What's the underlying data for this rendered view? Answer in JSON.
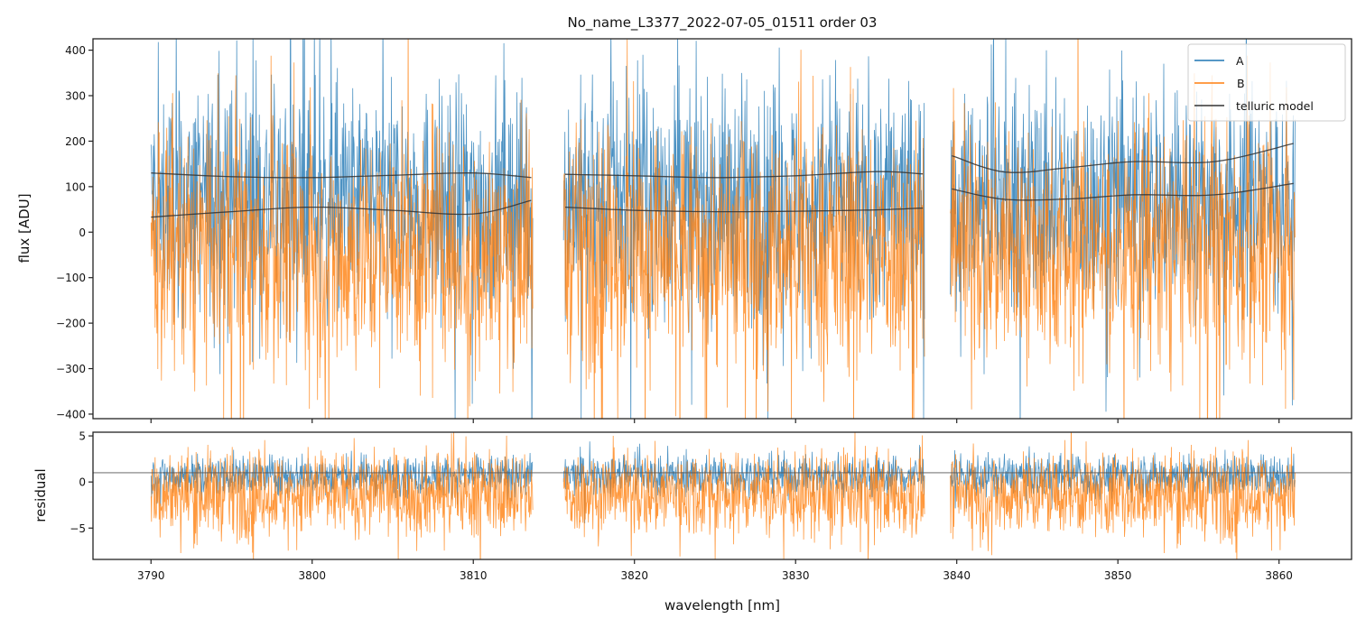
{
  "chart_data": [
    {
      "type": "line",
      "title": "No_name_L3377_2022-07-05_01511  order 03",
      "xlabel": "",
      "ylabel": "flux [ADU]",
      "xlim": [
        3786.4,
        3864.5
      ],
      "ylim": [
        -410,
        425
      ],
      "yticks": [
        400,
        300,
        200,
        100,
        0,
        -100,
        -200,
        -300,
        -400
      ],
      "ytick_labels": [
        "400",
        "300",
        "200",
        "100",
        "0",
        "−100",
        "−200",
        "−300",
        "−400"
      ],
      "xticks": [
        3790,
        3800,
        3810,
        3820,
        3830,
        3840,
        3850,
        3860
      ],
      "segments": [
        [
          3790.0,
          3813.7
        ],
        [
          3815.6,
          3838.0
        ],
        [
          3839.6,
          3861.0
        ]
      ],
      "legend": {
        "placement": "top-right",
        "entries": [
          "A",
          "B",
          "telluric model"
        ]
      },
      "series": [
        {
          "name": "A",
          "color": "#1f77b4",
          "description_values": {
            "mean": 60,
            "spread_low": -330,
            "spread_high": 430
          }
        },
        {
          "name": "B",
          "color": "#ff7f0e",
          "description_values": {
            "mean": -20,
            "spread_low": -420,
            "spread_high": 260
          }
        },
        {
          "name": "telluric model",
          "color": "#333333",
          "curves": [
            {
              "x": [
                3790,
                3795,
                3800,
                3805,
                3810,
                3813.6
              ],
              "y": [
                130,
                122,
                120,
                125,
                130,
                120
              ]
            },
            {
              "x": [
                3790,
                3795,
                3800,
                3805,
                3810,
                3813.6
              ],
              "y": [
                33,
                45,
                55,
                48,
                40,
                70
              ]
            },
            {
              "x": [
                3815.7,
                3820,
                3825,
                3830,
                3835,
                3837.9
              ],
              "y": [
                127,
                124,
                120,
                124,
                133,
                128
              ]
            },
            {
              "x": [
                3815.7,
                3820,
                3825,
                3830,
                3835,
                3837.9
              ],
              "y": [
                55,
                48,
                45,
                46,
                49,
                53
              ]
            },
            {
              "x": [
                3839.7,
                3843,
                3847,
                3851,
                3856,
                3860.9
              ],
              "y": [
                168,
                132,
                142,
                155,
                155,
                195
              ]
            },
            {
              "x": [
                3839.7,
                3843,
                3847,
                3851,
                3856,
                3860.9
              ],
              "y": [
                95,
                72,
                73,
                82,
                82,
                107
              ]
            }
          ]
        }
      ]
    },
    {
      "type": "line",
      "title": "",
      "xlabel": "wavelength [nm]",
      "ylabel": "residual",
      "xlim": [
        3786.4,
        3864.5
      ],
      "ylim": [
        -8.4,
        5.4
      ],
      "yticks": [
        5,
        0,
        -5
      ],
      "ytick_labels": [
        "5",
        "0",
        "−5"
      ],
      "xticks": [
        3790,
        3800,
        3810,
        3820,
        3830,
        3840,
        3850,
        3860
      ],
      "xtick_labels": [
        "3790",
        "3800",
        "3810",
        "3820",
        "3830",
        "3840",
        "3850",
        "3860"
      ],
      "reference_line": 1,
      "segments": [
        [
          3790.0,
          3813.7
        ],
        [
          3815.6,
          3838.0
        ],
        [
          3839.6,
          3861.0
        ]
      ],
      "series": [
        {
          "name": "A",
          "color": "#1f77b4",
          "description_values": {
            "mean": 0.5,
            "spread_low": -3,
            "spread_high": 3
          }
        },
        {
          "name": "B",
          "color": "#ff7f0e",
          "description_values": {
            "mean": -1.5,
            "spread_low": -8.4,
            "spread_high": 5.4
          }
        }
      ]
    }
  ]
}
